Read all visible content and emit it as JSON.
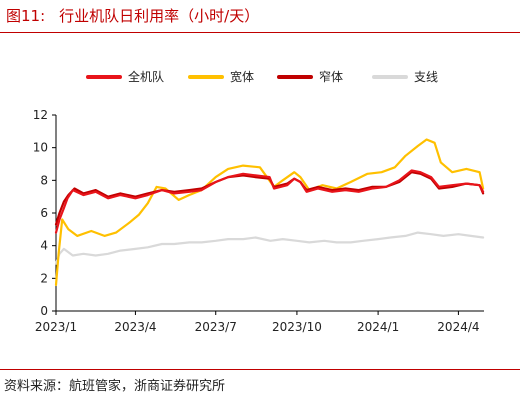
{
  "figure": {
    "number": "图11:",
    "title": "行业机队日利用率（小时/天）",
    "source": "资料来源：航班管家，浙商证券研究所"
  },
  "chart_data": {
    "type": "line",
    "title": "行业机队日利用率（小时/天）",
    "xlabel": "",
    "ylabel": "",
    "ylim": [
      0,
      12
    ],
    "yticks": [
      0,
      2,
      4,
      6,
      8,
      10,
      12
    ],
    "xlim": [
      "2023-01-01",
      "2024-04-30"
    ],
    "xticks": [
      {
        "date": "2023-01-01",
        "label": "2023/1"
      },
      {
        "date": "2023-04-01",
        "label": "2023/4"
      },
      {
        "date": "2023-07-01",
        "label": "2023/7"
      },
      {
        "date": "2023-10-01",
        "label": "2023/10"
      },
      {
        "date": "2024-01-01",
        "label": "2024/1"
      },
      {
        "date": "2024-04-01",
        "label": "2024/4"
      }
    ],
    "grid": false,
    "legend_position": "top",
    "series": [
      {
        "name": "全机队",
        "color": "#e8141a",
        "stroke_width": 2.2,
        "points": [
          [
            "2023-01-01",
            4.8
          ],
          [
            "2023-01-05",
            5.6
          ],
          [
            "2023-01-10",
            6.3
          ],
          [
            "2023-01-14",
            6.9
          ],
          [
            "2023-01-20",
            7.4
          ],
          [
            "2023-02-01",
            7.1
          ],
          [
            "2023-02-15",
            7.3
          ],
          [
            "2023-03-01",
            6.9
          ],
          [
            "2023-03-15",
            7.1
          ],
          [
            "2023-04-01",
            6.9
          ],
          [
            "2023-04-15",
            7.1
          ],
          [
            "2023-05-01",
            7.4
          ],
          [
            "2023-05-15",
            7.2
          ],
          [
            "2023-06-01",
            7.3
          ],
          [
            "2023-06-15",
            7.4
          ],
          [
            "2023-07-01",
            7.9
          ],
          [
            "2023-07-15",
            8.2
          ],
          [
            "2023-08-01",
            8.4
          ],
          [
            "2023-08-15",
            8.3
          ],
          [
            "2023-08-31",
            8.2
          ],
          [
            "2023-09-05",
            7.5
          ],
          [
            "2023-09-20",
            7.7
          ],
          [
            "2023-09-28",
            8.1
          ],
          [
            "2023-10-05",
            7.9
          ],
          [
            "2023-10-12",
            7.3
          ],
          [
            "2023-10-25",
            7.5
          ],
          [
            "2023-11-10",
            7.3
          ],
          [
            "2023-11-25",
            7.4
          ],
          [
            "2023-12-10",
            7.3
          ],
          [
            "2023-12-25",
            7.5
          ],
          [
            "2024-01-10",
            7.6
          ],
          [
            "2024-01-25",
            8.0
          ],
          [
            "2024-02-08",
            8.6
          ],
          [
            "2024-02-18",
            8.5
          ],
          [
            "2024-03-01",
            8.2
          ],
          [
            "2024-03-10",
            7.6
          ],
          [
            "2024-03-25",
            7.7
          ],
          [
            "2024-04-10",
            7.8
          ],
          [
            "2024-04-25",
            7.7
          ],
          [
            "2024-04-29",
            7.3
          ]
        ]
      },
      {
        "name": "宽体",
        "color": "#ffc000",
        "stroke_width": 2.2,
        "points": [
          [
            "2023-01-01",
            1.6
          ],
          [
            "2023-01-04",
            3.5
          ],
          [
            "2023-01-08",
            5.6
          ],
          [
            "2023-01-15",
            5.0
          ],
          [
            "2023-01-25",
            4.6
          ],
          [
            "2023-02-10",
            4.9
          ],
          [
            "2023-02-25",
            4.6
          ],
          [
            "2023-03-10",
            4.8
          ],
          [
            "2023-03-25",
            5.4
          ],
          [
            "2023-04-05",
            5.9
          ],
          [
            "2023-04-15",
            6.6
          ],
          [
            "2023-04-25",
            7.6
          ],
          [
            "2023-05-05",
            7.5
          ],
          [
            "2023-05-20",
            6.8
          ],
          [
            "2023-06-01",
            7.1
          ],
          [
            "2023-06-15",
            7.4
          ],
          [
            "2023-07-01",
            8.2
          ],
          [
            "2023-07-15",
            8.7
          ],
          [
            "2023-08-01",
            8.9
          ],
          [
            "2023-08-20",
            8.8
          ],
          [
            "2023-09-05",
            7.6
          ],
          [
            "2023-09-15",
            8.0
          ],
          [
            "2023-09-28",
            8.5
          ],
          [
            "2023-10-05",
            8.2
          ],
          [
            "2023-10-15",
            7.4
          ],
          [
            "2023-10-30",
            7.7
          ],
          [
            "2023-11-15",
            7.5
          ],
          [
            "2023-12-01",
            7.9
          ],
          [
            "2023-12-20",
            8.4
          ],
          [
            "2024-01-05",
            8.5
          ],
          [
            "2024-01-20",
            8.8
          ],
          [
            "2024-02-01",
            9.5
          ],
          [
            "2024-02-15",
            10.1
          ],
          [
            "2024-02-25",
            10.5
          ],
          [
            "2024-03-05",
            10.3
          ],
          [
            "2024-03-12",
            9.1
          ],
          [
            "2024-03-25",
            8.5
          ],
          [
            "2024-04-10",
            8.7
          ],
          [
            "2024-04-25",
            8.5
          ],
          [
            "2024-04-29",
            7.5
          ]
        ]
      },
      {
        "name": "窄体",
        "color": "#c00000",
        "stroke_width": 2.2,
        "points": [
          [
            "2023-01-01",
            5.3
          ],
          [
            "2023-01-05",
            6.0
          ],
          [
            "2023-01-10",
            6.7
          ],
          [
            "2023-01-15",
            7.1
          ],
          [
            "2023-01-22",
            7.5
          ],
          [
            "2023-02-01",
            7.2
          ],
          [
            "2023-02-15",
            7.4
          ],
          [
            "2023-03-01",
            7.0
          ],
          [
            "2023-03-15",
            7.2
          ],
          [
            "2023-04-01",
            7.0
          ],
          [
            "2023-04-15",
            7.2
          ],
          [
            "2023-05-01",
            7.4
          ],
          [
            "2023-05-15",
            7.3
          ],
          [
            "2023-06-01",
            7.4
          ],
          [
            "2023-06-15",
            7.5
          ],
          [
            "2023-07-01",
            7.9
          ],
          [
            "2023-07-15",
            8.2
          ],
          [
            "2023-08-01",
            8.3
          ],
          [
            "2023-08-15",
            8.2
          ],
          [
            "2023-08-31",
            8.1
          ],
          [
            "2023-09-05",
            7.6
          ],
          [
            "2023-09-20",
            7.8
          ],
          [
            "2023-09-28",
            8.1
          ],
          [
            "2023-10-05",
            7.9
          ],
          [
            "2023-10-12",
            7.4
          ],
          [
            "2023-10-25",
            7.6
          ],
          [
            "2023-11-10",
            7.4
          ],
          [
            "2023-11-25",
            7.5
          ],
          [
            "2023-12-10",
            7.4
          ],
          [
            "2023-12-25",
            7.6
          ],
          [
            "2024-01-10",
            7.6
          ],
          [
            "2024-01-25",
            7.9
          ],
          [
            "2024-02-08",
            8.5
          ],
          [
            "2024-02-18",
            8.4
          ],
          [
            "2024-03-01",
            8.1
          ],
          [
            "2024-03-10",
            7.5
          ],
          [
            "2024-03-25",
            7.6
          ],
          [
            "2024-04-10",
            7.8
          ],
          [
            "2024-04-25",
            7.7
          ],
          [
            "2024-04-29",
            7.2
          ]
        ]
      },
      {
        "name": "支线",
        "color": "#d9d9d9",
        "stroke_width": 2.2,
        "points": [
          [
            "2023-01-01",
            2.9
          ],
          [
            "2023-01-05",
            3.5
          ],
          [
            "2023-01-10",
            3.8
          ],
          [
            "2023-01-20",
            3.4
          ],
          [
            "2023-02-01",
            3.5
          ],
          [
            "2023-02-15",
            3.4
          ],
          [
            "2023-03-01",
            3.5
          ],
          [
            "2023-03-15",
            3.7
          ],
          [
            "2023-04-01",
            3.8
          ],
          [
            "2023-04-15",
            3.9
          ],
          [
            "2023-05-01",
            4.1
          ],
          [
            "2023-05-15",
            4.1
          ],
          [
            "2023-06-01",
            4.2
          ],
          [
            "2023-06-15",
            4.2
          ],
          [
            "2023-07-01",
            4.3
          ],
          [
            "2023-07-15",
            4.4
          ],
          [
            "2023-08-01",
            4.4
          ],
          [
            "2023-08-15",
            4.5
          ],
          [
            "2023-09-01",
            4.3
          ],
          [
            "2023-09-15",
            4.4
          ],
          [
            "2023-10-01",
            4.3
          ],
          [
            "2023-10-15",
            4.2
          ],
          [
            "2023-11-01",
            4.3
          ],
          [
            "2023-11-15",
            4.2
          ],
          [
            "2023-12-01",
            4.2
          ],
          [
            "2023-12-15",
            4.3
          ],
          [
            "2024-01-01",
            4.4
          ],
          [
            "2024-01-15",
            4.5
          ],
          [
            "2024-02-01",
            4.6
          ],
          [
            "2024-02-15",
            4.8
          ],
          [
            "2024-03-01",
            4.7
          ],
          [
            "2024-03-15",
            4.6
          ],
          [
            "2024-04-01",
            4.7
          ],
          [
            "2024-04-15",
            4.6
          ],
          [
            "2024-04-29",
            4.5
          ]
        ]
      }
    ]
  }
}
